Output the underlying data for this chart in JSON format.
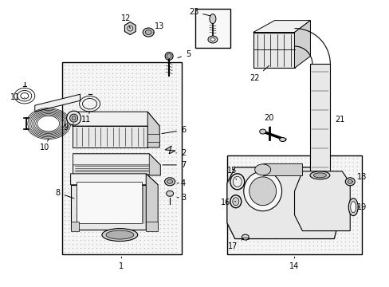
{
  "bg_color": "#ffffff",
  "fig_width": 4.89,
  "fig_height": 3.6,
  "dpi": 100,
  "lc": "#000000",
  "fs": 7.0,
  "gray_light": "#e8e8e8",
  "gray_med": "#d0d0d0",
  "gray_dark": "#b0b0b0",
  "dot_bg": "#dcdcdc"
}
